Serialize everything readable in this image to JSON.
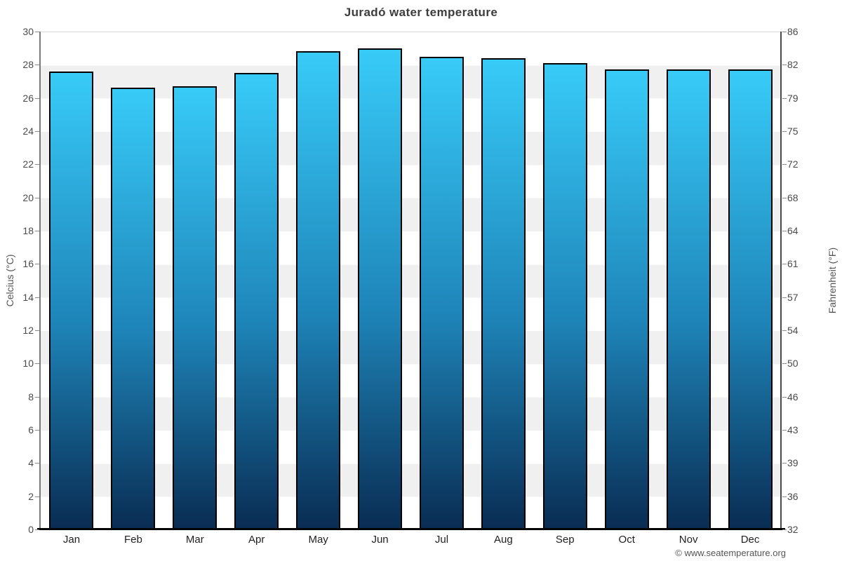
{
  "title": "Juradó water temperature",
  "copyright": "© www.seatemperature.org",
  "axes": {
    "left_label": "Celcius (°C)",
    "right_label": "Fahrenheit (°F)",
    "left_ticks": [
      0,
      2,
      4,
      6,
      8,
      10,
      12,
      14,
      16,
      18,
      20,
      22,
      24,
      26,
      28,
      30
    ],
    "right_ticks": [
      32,
      36,
      39,
      43,
      46,
      50,
      54,
      57,
      61,
      64,
      68,
      72,
      75,
      79,
      82,
      86
    ]
  },
  "colors": {
    "bar_gradient_top": "#38cbf8",
    "bar_gradient_mid": "#1e84b8",
    "bar_gradient_bottom": "#092c52",
    "bar_border": "#000000",
    "band_light": "#ffffff",
    "band_gray": "#f0f0f1"
  },
  "chart_data": {
    "type": "bar",
    "title": "Juradó water temperature",
    "categories": [
      "Jan",
      "Feb",
      "Mar",
      "Apr",
      "May",
      "Jun",
      "Jul",
      "Aug",
      "Sep",
      "Oct",
      "Nov",
      "Dec"
    ],
    "values": [
      27.6,
      26.6,
      26.7,
      27.5,
      28.8,
      29.0,
      28.5,
      28.4,
      28.1,
      27.7,
      27.7,
      27.7
    ],
    "xlabel": "",
    "ylabel": "Celcius (°C)",
    "ylabel_right": "Fahrenheit (°F)",
    "ylim": [
      0,
      30
    ],
    "right_axis_ticks_fahrenheit": [
      32,
      36,
      39,
      43,
      46,
      50,
      54,
      57,
      61,
      64,
      68,
      72,
      75,
      79,
      82,
      86
    ],
    "grid": "alternating horizontal bands every 2°C",
    "legend": "none"
  }
}
